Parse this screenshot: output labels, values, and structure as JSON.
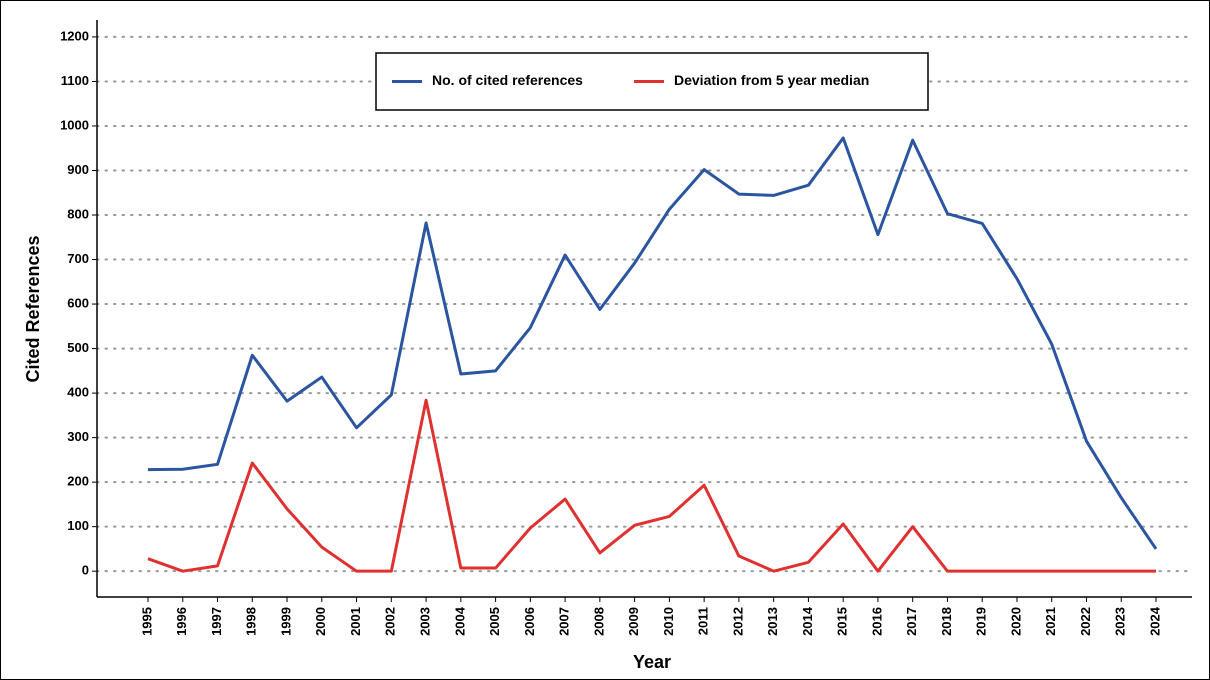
{
  "chart_data": {
    "type": "line",
    "x_label": "Year",
    "y_label": "Cited References",
    "categories": [
      "1995",
      "1996",
      "1997",
      "1998",
      "1999",
      "2000",
      "2001",
      "2002",
      "2003",
      "2004",
      "2005",
      "2006",
      "2007",
      "2008",
      "2009",
      "2010",
      "2011",
      "2012",
      "2013",
      "2014",
      "2015",
      "2016",
      "2017",
      "2018",
      "2019",
      "2020",
      "2021",
      "2022",
      "2023",
      "2024"
    ],
    "series": [
      {
        "name": "No. of cited references",
        "color": "#2b55a0",
        "values": [
          228,
          229,
          240,
          485,
          382,
          436,
          322,
          396,
          782,
          443,
          450,
          547,
          710,
          588,
          692,
          813,
          902,
          847,
          844,
          867,
          973,
          756,
          968,
          803,
          781,
          657,
          510,
          292,
          165,
          50
        ]
      },
      {
        "name": "Deviation from 5 year median",
        "color": "#e03131",
        "values": [
          28,
          0,
          12,
          243,
          140,
          54,
          0,
          0,
          384,
          7,
          7,
          97,
          162,
          41,
          103,
          123,
          193,
          34,
          0,
          20,
          106,
          0,
          100,
          0,
          0,
          0,
          0,
          0,
          0,
          0
        ]
      }
    ],
    "ylim": [
      -58,
      1238
    ],
    "yticks": [
      0,
      100,
      200,
      300,
      400,
      500,
      600,
      700,
      800,
      900,
      1000,
      1100,
      1200
    ],
    "grid": true,
    "legend": "top"
  }
}
